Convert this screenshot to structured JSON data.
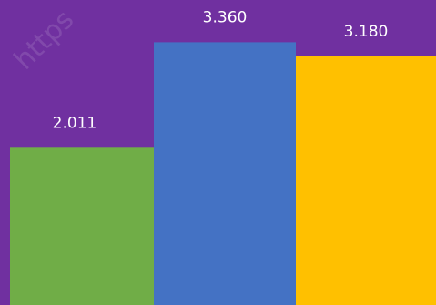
{
  "background_color": "#7030A0",
  "watermark_text": "https",
  "chart_data": {
    "type": "bar",
    "values": [
      2.011,
      3.36,
      3.18
    ],
    "data_labels": [
      "2.011",
      "3.360",
      "3.180"
    ],
    "colors": [
      "#70AD47",
      "#4472C4",
      "#FFC000"
    ],
    "ylim": [
      0,
      3.9
    ],
    "grid": false,
    "legend": "none"
  }
}
